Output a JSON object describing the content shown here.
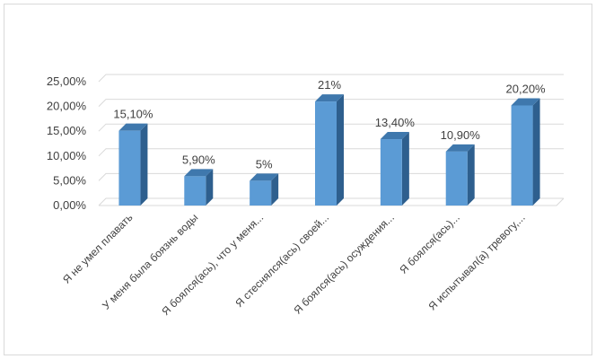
{
  "chart_data": {
    "type": "bar",
    "style": "3d-clustered-column",
    "categories": [
      "Я не умел плавать",
      "У меня была боязнь воды",
      "Я боялся(ась), что у меня...",
      "Я стеснялся(ась) своей...",
      "Я боялся(ась) осуждения...",
      "Я боялся(ась)...",
      "Я испытывал(а) тревогу,..."
    ],
    "values": [
      15.1,
      5.9,
      5,
      21,
      13.4,
      10.9,
      20.2
    ],
    "data_labels": [
      "15,10%",
      "5,90%",
      "5%",
      "21%",
      "13,40%",
      "10,90%",
      "20,20%"
    ],
    "y_ticks": [
      "0,00%",
      "5,00%",
      "10,00%",
      "15,00%",
      "20,00%",
      "25,00%"
    ],
    "ylim": [
      0,
      25
    ],
    "grid": true,
    "legend": "none",
    "colors": {
      "bar_front": "#5b9bd5",
      "bar_side": "#2e5f8e",
      "bar_top": "#3f78ad",
      "grid": "#d9d9d9"
    }
  }
}
